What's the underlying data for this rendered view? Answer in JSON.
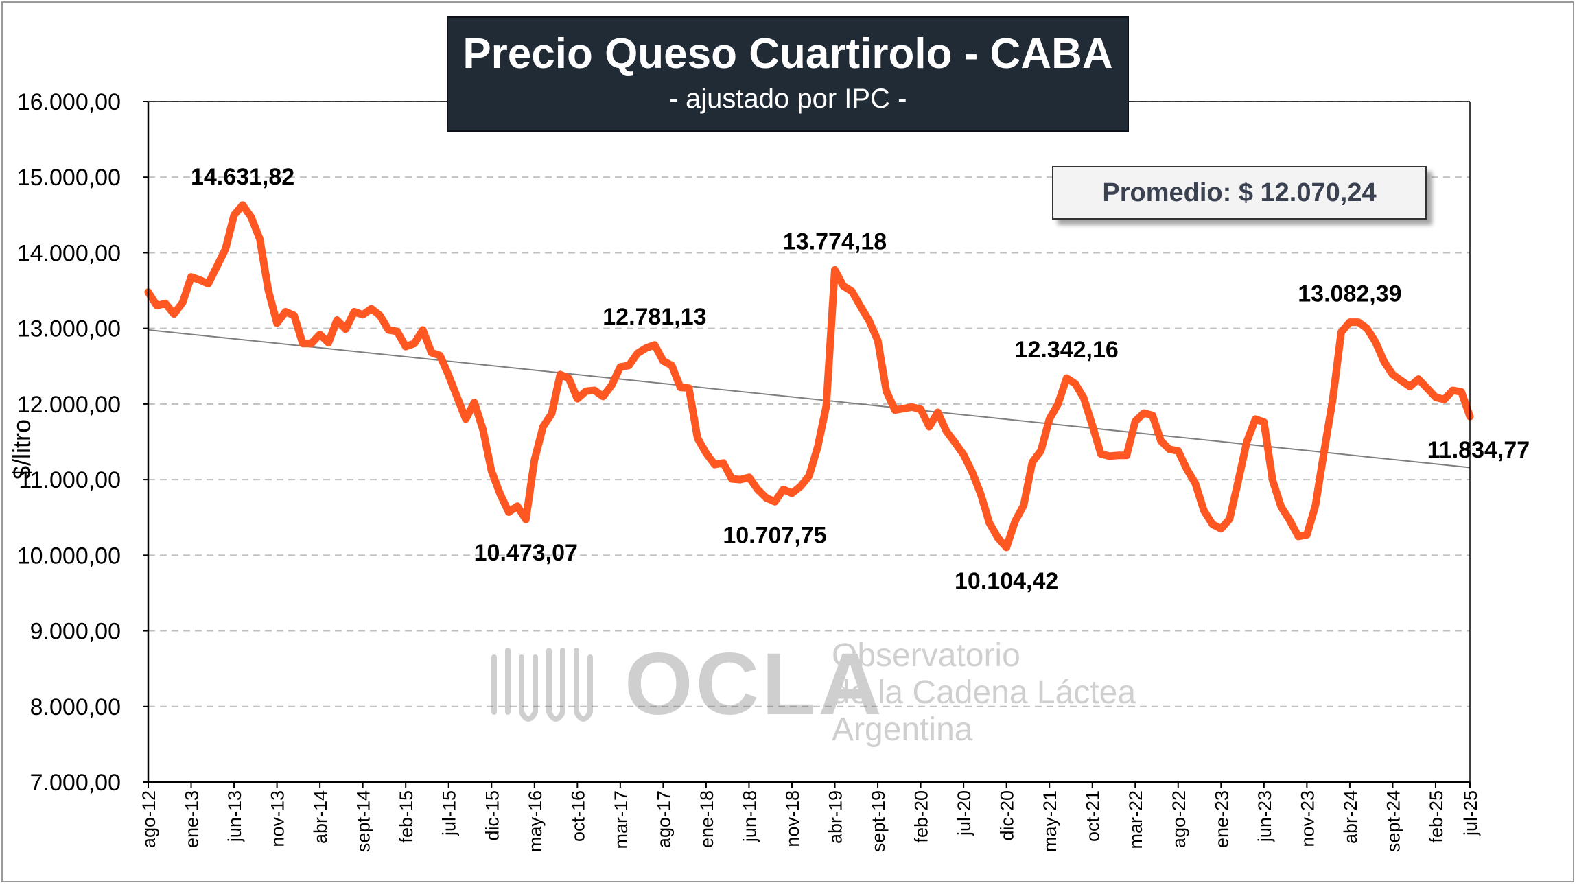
{
  "chart_data": {
    "type": "line",
    "title": "Precio Queso Cuartirolo - CABA",
    "subtitle": "- ajustado por IPC -",
    "ylabel": "$/litro",
    "xlabel": "",
    "ylim": [
      7000,
      16000
    ],
    "yticks": [
      7000,
      8000,
      9000,
      10000,
      11000,
      12000,
      13000,
      14000,
      15000,
      16000
    ],
    "ytick_labels": [
      "7.000,00",
      "8.000,00",
      "9.000,00",
      "10.000,00",
      "11.000,00",
      "12.000,00",
      "13.000,00",
      "14.000,00",
      "15.000,00",
      "16.000,00"
    ],
    "x_start": "ago-12",
    "x_end": "jul-25",
    "xtick_labels": [
      "ago-12",
      "ene-13",
      "jun-13",
      "nov-13",
      "abr-14",
      "sept-14",
      "feb-15",
      "jul-15",
      "dic-15",
      "may-16",
      "oct-16",
      "mar-17",
      "ago-17",
      "ene-18",
      "jun-18",
      "nov-18",
      "abr-19",
      "sept-19",
      "feb-20",
      "jul-20",
      "dic-20",
      "may-21",
      "oct-21",
      "mar-22",
      "ago-22",
      "ene-23",
      "jun-23",
      "nov-23",
      "abr-24",
      "sept-24",
      "feb-25",
      "jul-25"
    ],
    "grid": "horizontal-dashed",
    "series": [
      {
        "color": "#ff5722",
        "values": [
          13480,
          13300,
          13330,
          13190,
          13340,
          13680,
          13640,
          13590,
          13820,
          14050,
          14500,
          14632,
          14470,
          14180,
          13500,
          13070,
          13220,
          13170,
          12800,
          12800,
          12920,
          12810,
          13110,
          12990,
          13220,
          13180,
          13260,
          13170,
          12980,
          12960,
          12760,
          12800,
          12980,
          12680,
          12640,
          12380,
          12090,
          11800,
          12020,
          11660,
          11110,
          10810,
          10570,
          10650,
          10473,
          11260,
          11700,
          11870,
          12390,
          12340,
          12070,
          12170,
          12180,
          12100,
          12250,
          12490,
          12510,
          12670,
          12740,
          12781,
          12570,
          12510,
          12220,
          12210,
          11550,
          11350,
          11200,
          11220,
          11010,
          11000,
          11030,
          10870,
          10760,
          10708,
          10870,
          10820,
          10910,
          11050,
          11430,
          11970,
          13774,
          13560,
          13490,
          13290,
          13100,
          12840,
          12170,
          11920,
          11940,
          11960,
          11930,
          11700,
          11890,
          11640,
          11490,
          11330,
          11100,
          10810,
          10430,
          10230,
          10104,
          10450,
          10660,
          11230,
          11380,
          11800,
          12000,
          12342,
          12270,
          12080,
          11720,
          11340,
          11310,
          11320,
          11320,
          11770,
          11880,
          11850,
          11510,
          11400,
          11380,
          11140,
          10950,
          10590,
          10410,
          10350,
          10480,
          10980,
          11500,
          11800,
          11760,
          10990,
          10640,
          10460,
          10250,
          10270,
          10660,
          11370,
          12050,
          12950,
          13082,
          13082,
          13000,
          12820,
          12560,
          12390,
          12310,
          12230,
          12330,
          12210,
          12090,
          12060,
          12180,
          12160,
          11835
        ]
      }
    ],
    "trend_line": {
      "start": 12980,
      "end": 11160,
      "color": "#7f7f7f"
    },
    "annotations": [
      {
        "label": "14.631,82",
        "index": 11,
        "value": 14631.82
      },
      {
        "label": "10.473,07",
        "index": 44,
        "value": 10473.07
      },
      {
        "label": "12.781,13",
        "index": 59,
        "value": 12781.13
      },
      {
        "label": "10.707,75",
        "index": 73,
        "value": 10707.75
      },
      {
        "label": "13.774,18",
        "index": 80,
        "value": 13774.18
      },
      {
        "label": "10.104,42",
        "index": 100,
        "value": 10104.42
      },
      {
        "label": "12.342,16",
        "index": 107,
        "value": 12342.16
      },
      {
        "label": "13.082,39",
        "index": 140,
        "value": 13082.39
      },
      {
        "label": "11.834,77",
        "index": 155,
        "value": 11834.77
      }
    ],
    "average_label": "Promedio: $ 12.070,24",
    "average_value": 12070.24
  },
  "watermark": {
    "word": "OCLA",
    "line1": "Observatorio",
    "line2": "de la Cadena Láctea",
    "line3": "Argentina"
  }
}
